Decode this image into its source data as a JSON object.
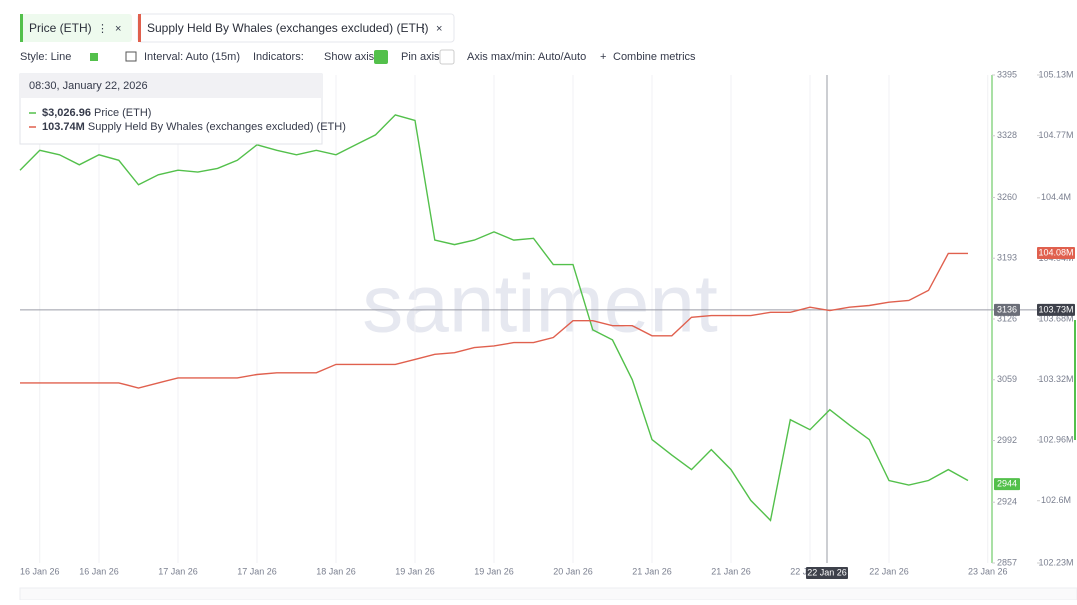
{
  "toolbar": {
    "style": "Style: Line",
    "interval": "Interval: Auto (15m)",
    "indicators": "Indicators:",
    "show_axis": "Show axis",
    "pin_axis": "Pin axis",
    "axis_minmax": "Axis max/min: Auto/Auto",
    "combine": "Combine metrics"
  },
  "tooltip": {
    "time": "08:30, January 22, 2026",
    "values": [
      "$3,026.96",
      "103.74M"
    ]
  },
  "chart_data": {
    "type": "line",
    "watermark": "santiment",
    "categories": [
      null,
      "16 Jan 26",
      null,
      null,
      "16 Jan 26",
      null,
      null,
      null,
      "17 Jan 26",
      null,
      null,
      null,
      "17 Jan 26",
      null,
      null,
      null,
      "18 Jan 26",
      null,
      null,
      null,
      "19 Jan 26",
      null,
      null,
      null,
      "19 Jan 26",
      null,
      null,
      null,
      "20 Jan 26",
      null,
      null,
      null,
      "21 Jan 26",
      null,
      null,
      null,
      "21 Jan 26",
      null,
      null,
      null,
      "22 Jan 26",
      null,
      null,
      null,
      "22 Jan 26",
      null,
      null,
      null,
      null,
      "23 Jan 26"
    ],
    "series": [
      {
        "name": "Price (ETH)",
        "color": "#53c04b",
        "axis": "y",
        "values": [
          3290,
          3312,
          3307,
          3296,
          3307,
          3301,
          3274,
          3285,
          3290,
          3288,
          3292,
          3301,
          3318,
          3312,
          3307,
          3312,
          3307,
          3318,
          3329,
          3351,
          3345,
          3213,
          3208,
          3213,
          3222,
          3213,
          3215,
          3186,
          3186,
          3114,
          3103,
          3059,
          2993,
          2976,
          2960,
          2982,
          2960,
          2926,
          2904,
          3015,
          3004,
          3026,
          3009,
          2993,
          2948,
          2943,
          2948,
          2960,
          2948,
          null
        ]
      },
      {
        "name": "Supply Held By Whales (exchanges excluded) (ETH)",
        "color": "#e0604e",
        "axis": "y2",
        "values": [
          103.3,
          103.3,
          103.3,
          103.3,
          103.3,
          103.3,
          103.27,
          103.3,
          103.33,
          103.33,
          103.33,
          103.33,
          103.35,
          103.36,
          103.36,
          103.36,
          103.41,
          103.41,
          103.41,
          103.41,
          103.44,
          103.47,
          103.48,
          103.51,
          103.52,
          103.54,
          103.54,
          103.57,
          103.67,
          103.67,
          103.64,
          103.64,
          103.58,
          103.58,
          103.69,
          103.7,
          103.7,
          103.7,
          103.72,
          103.72,
          103.75,
          103.73,
          103.75,
          103.76,
          103.78,
          103.79,
          103.85,
          104.07,
          104.07,
          null
        ]
      }
    ],
    "ylim": [
      2857,
      3395
    ],
    "yticks": [
      2857,
      2924,
      2992,
      3059,
      3126,
      3193,
      3260,
      3328,
      3395
    ],
    "y2lim": [
      102.23,
      105.13
    ],
    "y2ticks": [
      {
        "value": 102.23,
        "label": "102.23M"
      },
      {
        "value": 102.6,
        "label": "102.6M"
      },
      {
        "value": 102.96,
        "label": "102.96M"
      },
      {
        "value": 103.32,
        "label": "103.32M"
      },
      {
        "value": 103.68,
        "label": "103.68M"
      },
      {
        "value": 104.04,
        "label": "104.04M"
      },
      {
        "value": 104.4,
        "label": "104.4M"
      },
      {
        "value": 104.77,
        "label": "104.77M"
      },
      {
        "value": 105.13,
        "label": "105.13M"
      }
    ],
    "grid": true,
    "crosshair": {
      "x_label": "22 Jan 26",
      "y": 3136,
      "y2_label": "103.73M"
    },
    "last_values": {
      "y": 2944,
      "y2_label": "104.08M"
    }
  }
}
